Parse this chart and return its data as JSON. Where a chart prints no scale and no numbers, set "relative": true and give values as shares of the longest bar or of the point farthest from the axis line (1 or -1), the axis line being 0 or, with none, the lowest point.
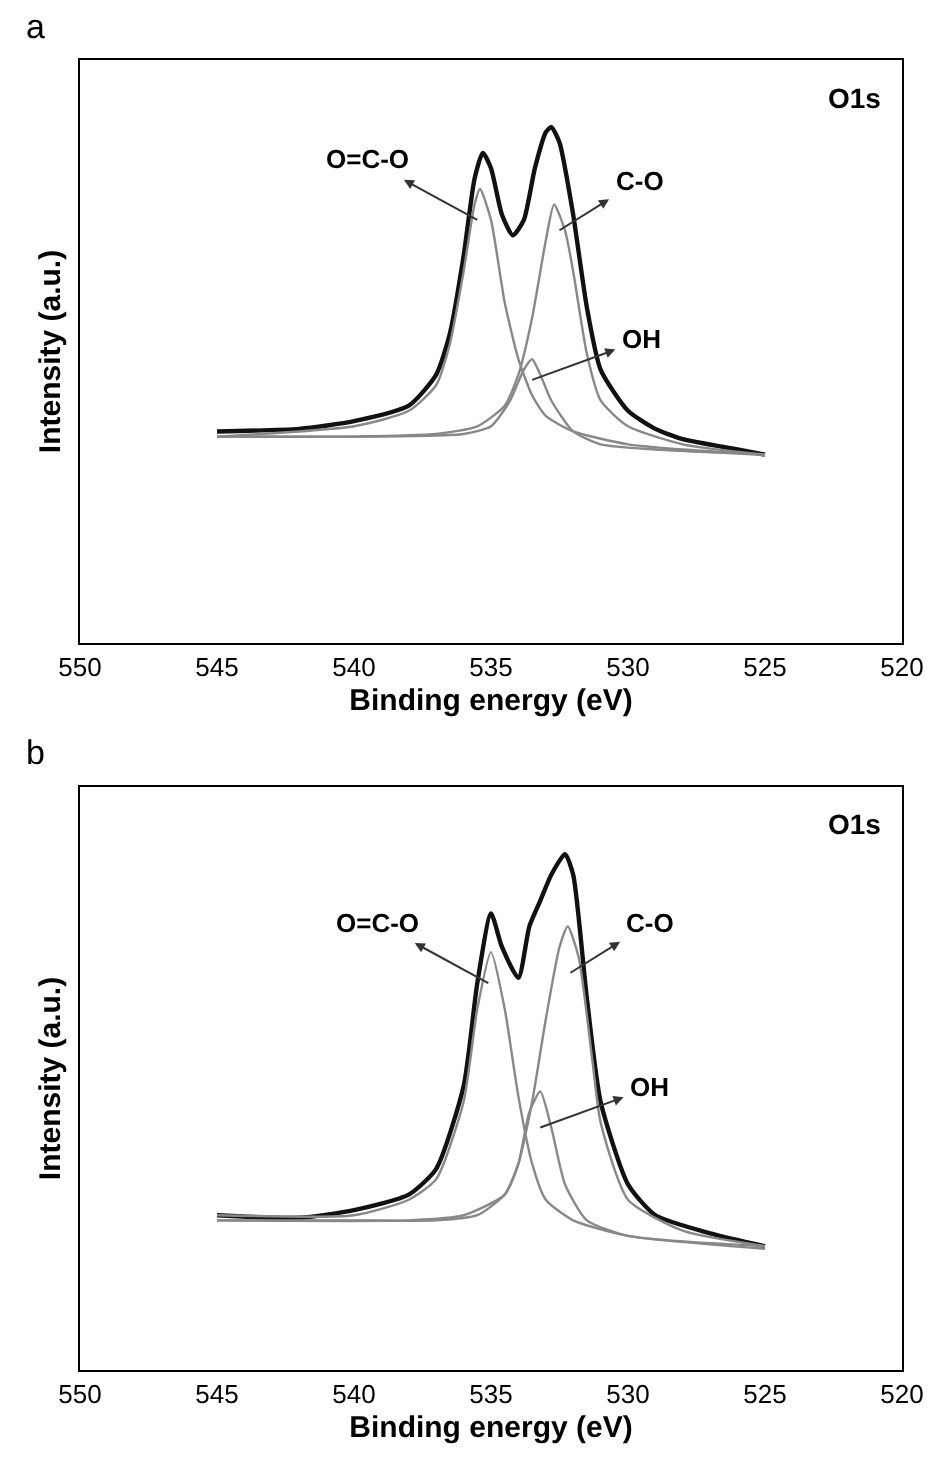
{
  "chart_data": [
    {
      "type": "line",
      "title": "a",
      "xlabel": "Binding energy (eV)",
      "ylabel": "Intensity (a.u.)",
      "relative": true,
      "xlim": [
        550,
        520
      ],
      "xticks": [
        550,
        545,
        540,
        535,
        530,
        525,
        520
      ],
      "annotations": [
        "O1s",
        {
          "text": "O=C-O",
          "x": 535.5,
          "y": 0.82
        },
        {
          "text": "C-O",
          "x": 532.5,
          "y": 0.8
        },
        {
          "text": "OH",
          "x": 533.5,
          "y": 0.51
        }
      ],
      "series": [
        {
          "color": "#111111",
          "x": [
            545,
            542,
            540,
            538,
            537,
            536.5,
            536,
            535.6,
            535.3,
            535,
            534.6,
            534.2,
            533.8,
            533.4,
            533,
            532.8,
            532.5,
            532,
            531.5,
            531,
            530,
            529,
            528,
            526,
            525
          ],
          "values": [
            0.41,
            0.415,
            0.43,
            0.46,
            0.52,
            0.6,
            0.75,
            0.9,
            0.95,
            0.92,
            0.83,
            0.79,
            0.82,
            0.92,
            0.99,
            1.0,
            0.97,
            0.83,
            0.65,
            0.53,
            0.45,
            0.415,
            0.395,
            0.375,
            0.365
          ]
        },
        {
          "color": "#888888",
          "x": [
            545,
            540,
            538,
            537,
            536.5,
            536,
            535.6,
            535.4,
            535,
            534.5,
            534,
            533.5,
            533,
            532,
            530,
            528,
            525
          ],
          "values": [
            0.4,
            0.42,
            0.45,
            0.5,
            0.58,
            0.72,
            0.85,
            0.88,
            0.82,
            0.66,
            0.55,
            0.48,
            0.44,
            0.41,
            0.385,
            0.375,
            0.365
          ]
        },
        {
          "color": "#888888",
          "x": [
            545,
            540,
            537,
            535.5,
            534.5,
            534,
            533.5,
            533,
            532.7,
            532.3,
            532,
            531.5,
            531,
            530,
            528,
            525
          ],
          "values": [
            0.4,
            0.4,
            0.405,
            0.42,
            0.46,
            0.52,
            0.63,
            0.78,
            0.85,
            0.8,
            0.72,
            0.56,
            0.47,
            0.42,
            0.385,
            0.365
          ]
        },
        {
          "color": "#888888",
          "x": [
            545,
            540,
            536,
            535,
            534.3,
            533.8,
            533.5,
            533.2,
            532.8,
            532,
            531,
            529,
            525
          ],
          "values": [
            0.4,
            0.4,
            0.405,
            0.42,
            0.47,
            0.53,
            0.55,
            0.52,
            0.47,
            0.41,
            0.385,
            0.375,
            0.365
          ]
        }
      ]
    },
    {
      "type": "line",
      "title": "b",
      "xlabel": "Binding energy (eV)",
      "ylabel": "Intensity (a.u.)",
      "relative": true,
      "xlim": [
        550,
        520
      ],
      "xticks": [
        550,
        545,
        540,
        535,
        530,
        525,
        520
      ],
      "annotations": [
        "O1s",
        {
          "text": "O=C-O",
          "x": 535.1,
          "y": 0.75
        },
        {
          "text": "C-O",
          "x": 532.1,
          "y": 0.77
        },
        {
          "text": "OH",
          "x": 533.2,
          "y": 0.47
        }
      ],
      "series": [
        {
          "color": "#111111",
          "x": [
            545,
            542,
            540,
            538,
            537,
            536,
            535.5,
            535,
            534.6,
            534,
            533.6,
            533.2,
            532.8,
            532.3,
            532,
            531.5,
            531,
            530,
            529,
            527,
            525
          ],
          "values": [
            0.3,
            0.295,
            0.31,
            0.34,
            0.39,
            0.55,
            0.75,
            0.885,
            0.82,
            0.76,
            0.86,
            0.91,
            0.96,
            1.0,
            0.96,
            0.72,
            0.52,
            0.36,
            0.3,
            0.265,
            0.24
          ]
        },
        {
          "color": "#888888",
          "x": [
            545,
            540,
            538,
            537,
            536,
            535.5,
            535,
            534.5,
            534,
            533.5,
            533,
            532,
            530,
            525
          ],
          "values": [
            0.3,
            0.3,
            0.33,
            0.37,
            0.52,
            0.7,
            0.81,
            0.7,
            0.53,
            0.4,
            0.33,
            0.29,
            0.26,
            0.235
          ]
        },
        {
          "color": "#888888",
          "x": [
            545,
            540,
            537,
            535.5,
            534.5,
            534,
            533.5,
            533,
            532.5,
            532.2,
            531.8,
            531.3,
            531,
            530,
            528,
            525
          ],
          "values": [
            0.29,
            0.29,
            0.29,
            0.3,
            0.34,
            0.4,
            0.52,
            0.68,
            0.82,
            0.86,
            0.8,
            0.6,
            0.48,
            0.33,
            0.27,
            0.24
          ]
        },
        {
          "color": "#888888",
          "x": [
            545,
            538,
            536,
            534.5,
            534,
            533.6,
            533.2,
            532.8,
            532.3,
            531.5,
            530,
            525
          ],
          "values": [
            0.29,
            0.29,
            0.3,
            0.34,
            0.4,
            0.5,
            0.54,
            0.47,
            0.36,
            0.29,
            0.26,
            0.24
          ]
        }
      ]
    }
  ]
}
